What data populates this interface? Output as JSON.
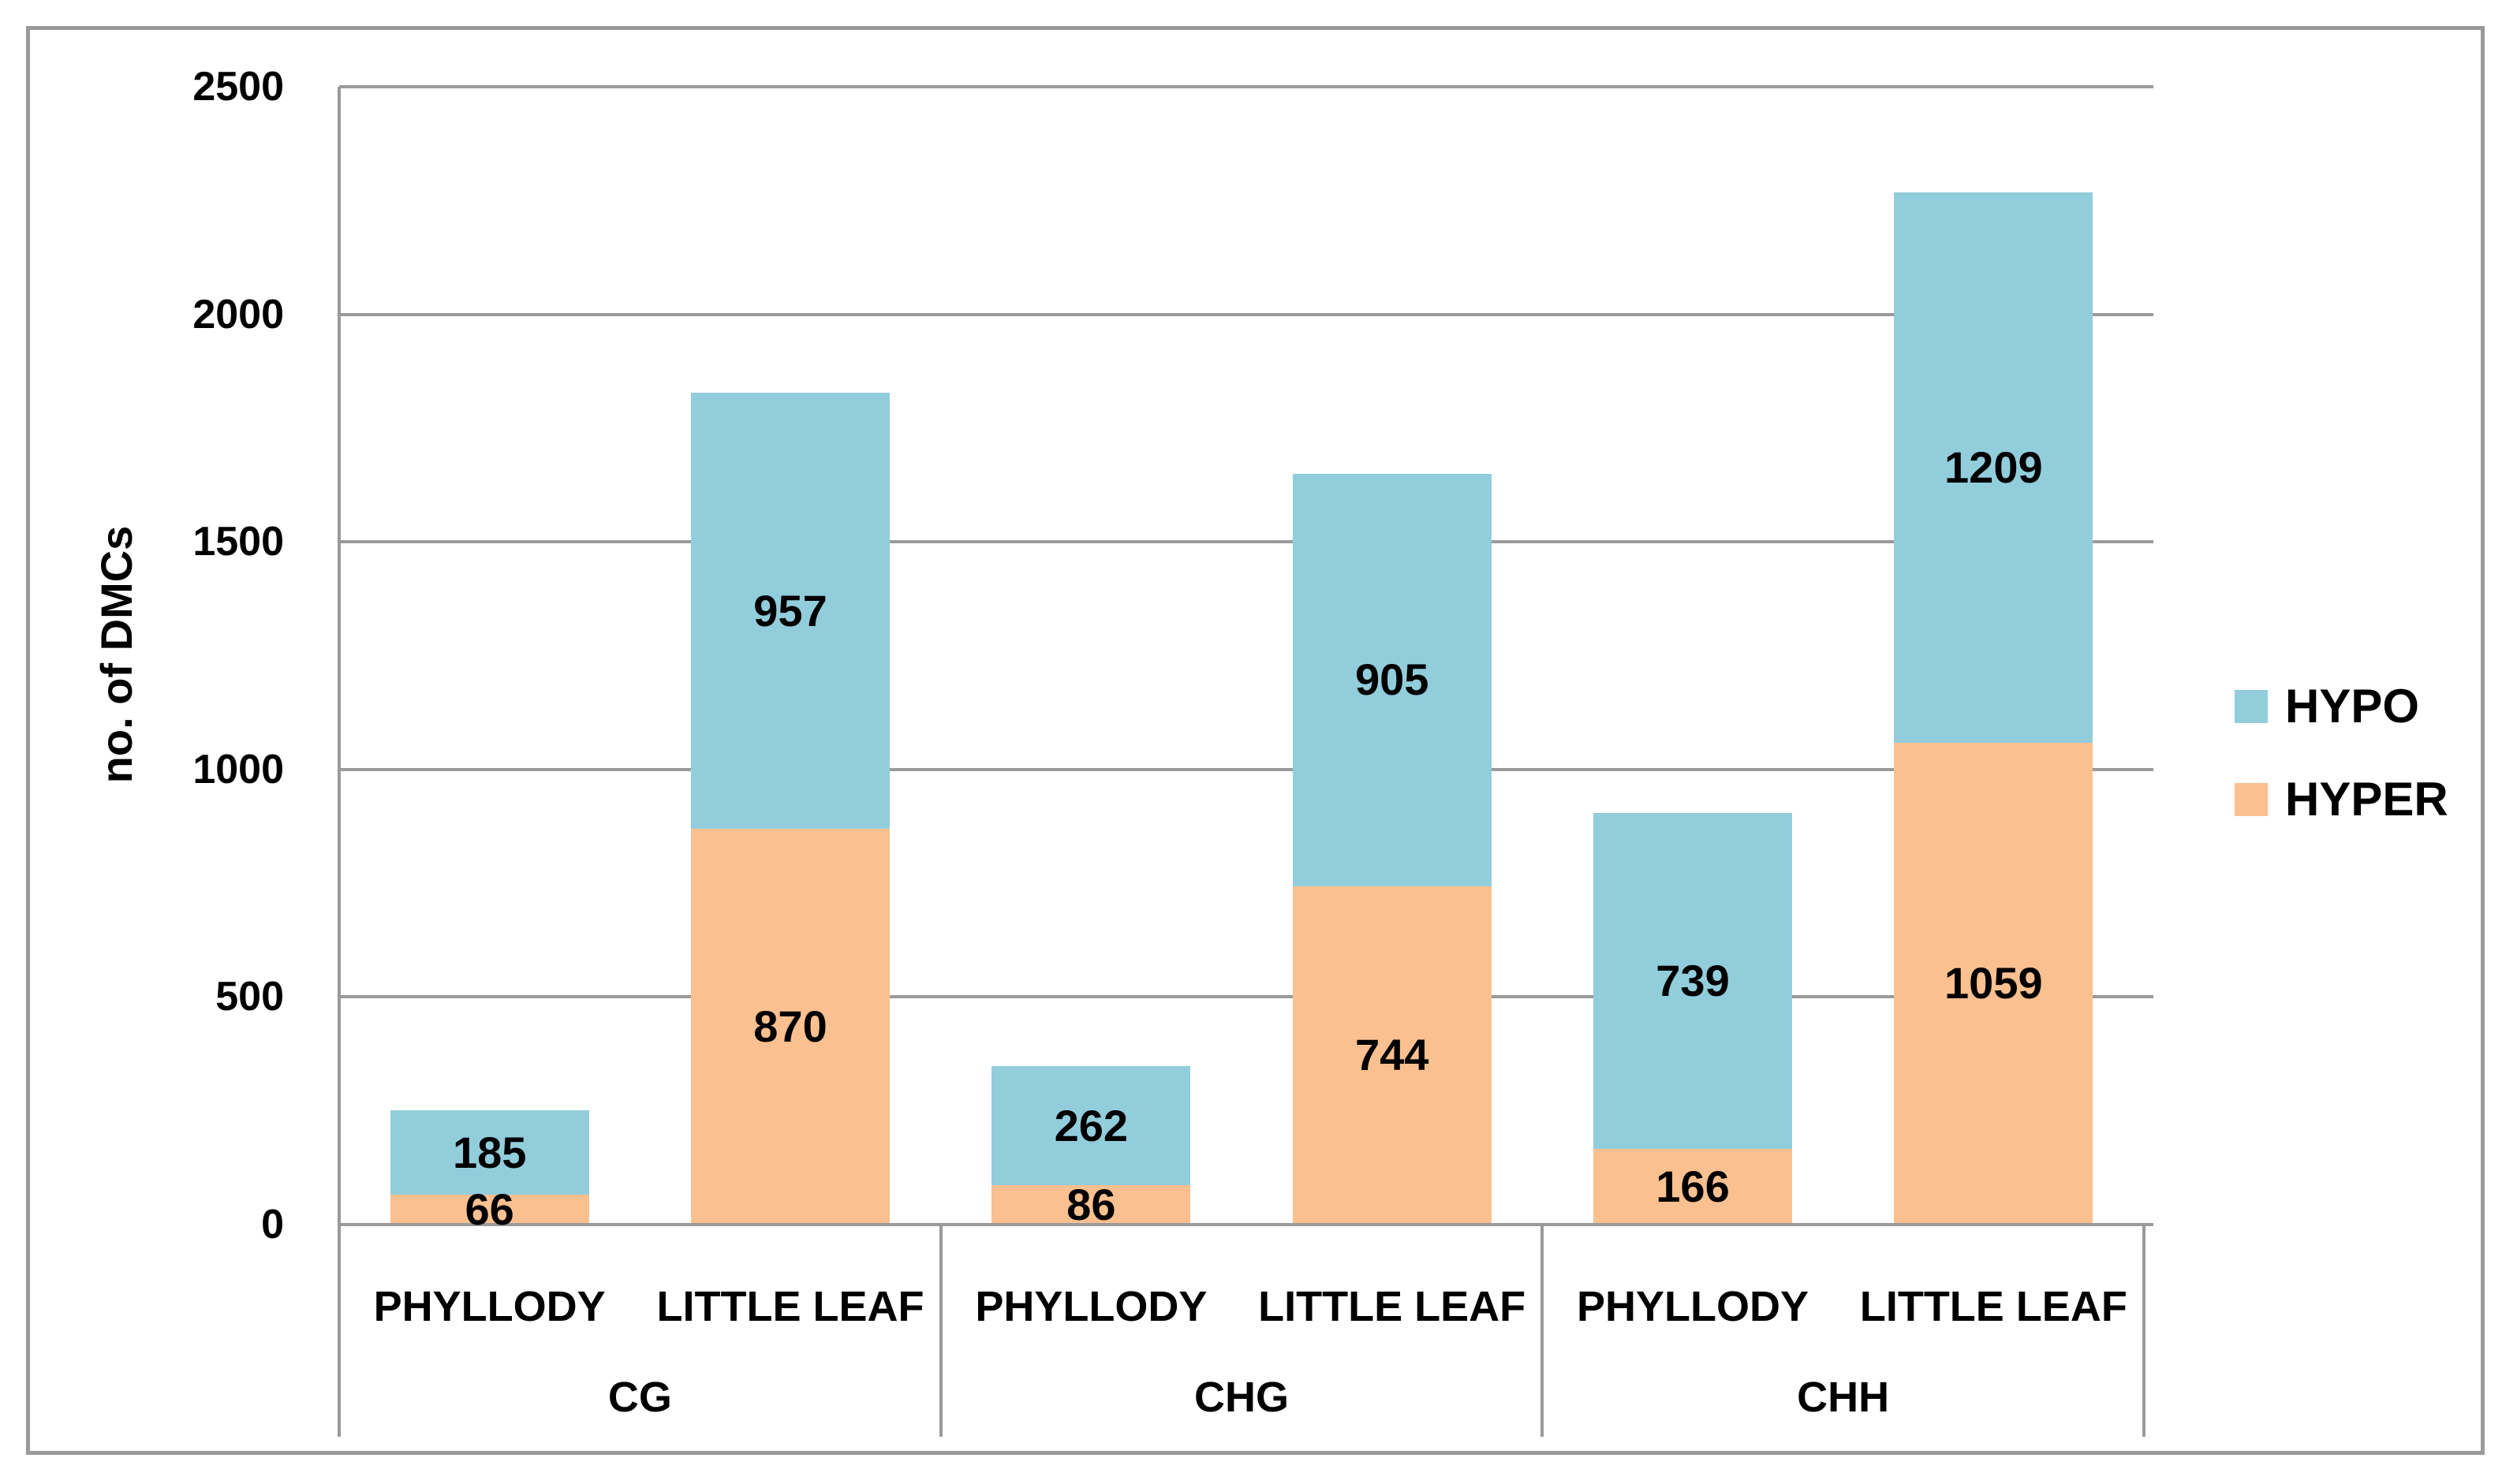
{
  "chart_data": {
    "type": "bar",
    "stacked": true,
    "title": "",
    "xlabel": "",
    "ylabel": "no. of DMCs",
    "ylim": [
      0,
      2500
    ],
    "yticks": [
      0,
      500,
      1000,
      1500,
      2000,
      2500
    ],
    "grid": true,
    "groups": [
      "CG",
      "CHG",
      "CHH"
    ],
    "categories": [
      "PHYLLODY",
      "LITTLE LEAF",
      "PHYLLODY",
      "LITTLE LEAF",
      "PHYLLODY",
      "LITTLE LEAF"
    ],
    "series": [
      {
        "name": "HYPER",
        "color": "#FAC090",
        "values": [
          66,
          870,
          86,
          744,
          166,
          1059
        ]
      },
      {
        "name": "HYPO",
        "color": "#92CDDC",
        "values": [
          185,
          957,
          262,
          905,
          739,
          1209
        ]
      }
    ],
    "legend": {
      "position": "right",
      "entries": [
        {
          "label": "HYPO",
          "color": "#92CDDC"
        },
        {
          "label": "HYPER",
          "color": "#FAC090"
        }
      ]
    }
  },
  "colors": {
    "hypo_blue": "#92CDDC",
    "hyper_orange": "#FAC090",
    "gridline_gray": "#9a9a9a",
    "frame_gray": "#9a9a9a",
    "text_black": "#000000",
    "background": "#ffffff"
  }
}
